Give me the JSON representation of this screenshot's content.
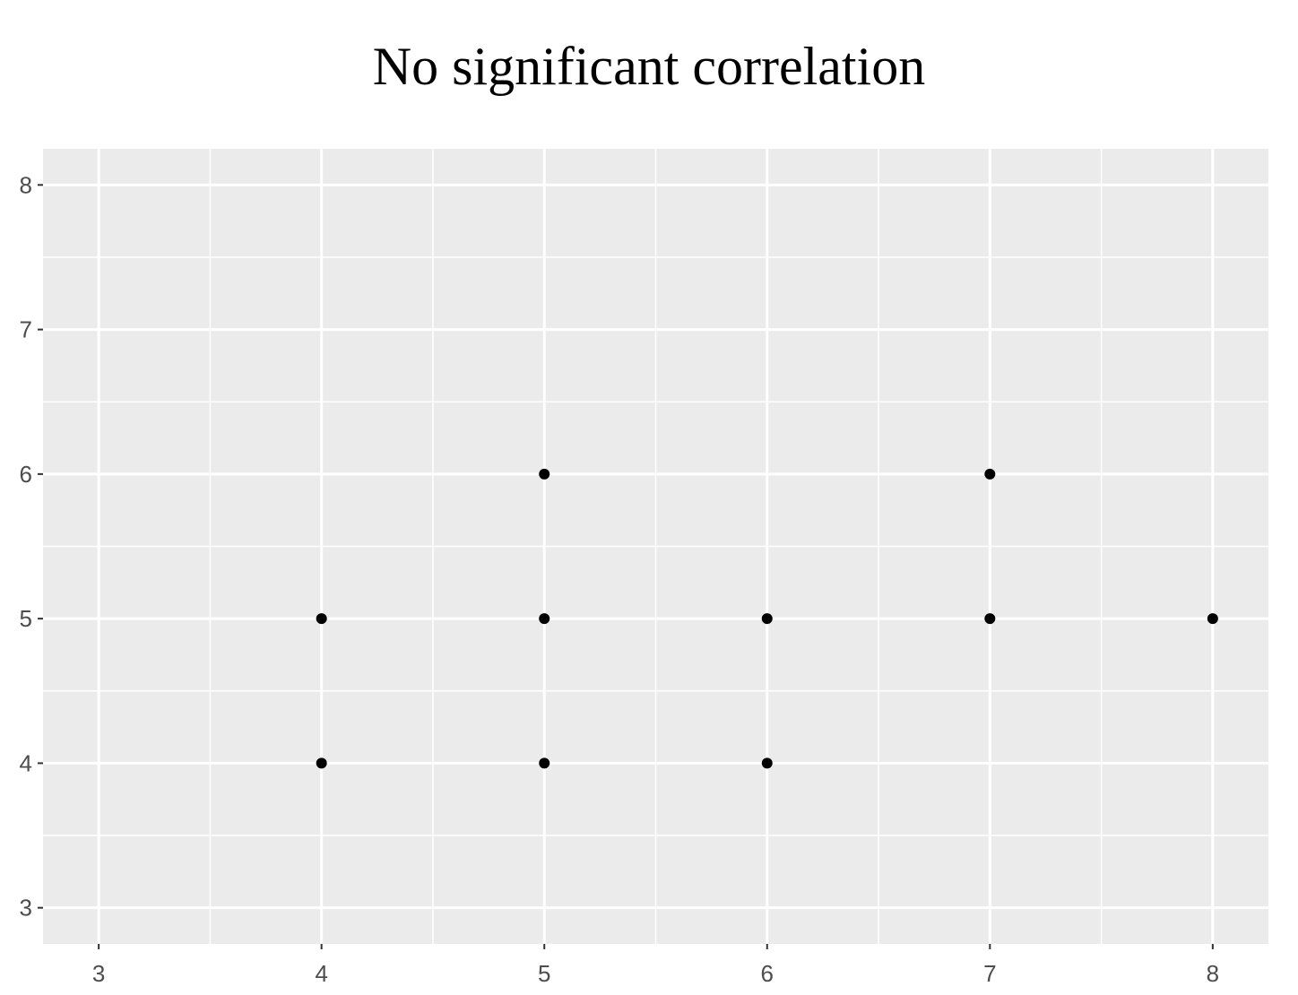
{
  "chart_data": {
    "type": "scatter",
    "title": "No significant correlation",
    "xlabel": "",
    "ylabel": "",
    "xlim": [
      2.75,
      8.25
    ],
    "ylim": [
      2.75,
      8.25
    ],
    "x_ticks": [
      "3",
      "4",
      "5",
      "6",
      "7",
      "8"
    ],
    "y_ticks": [
      "3",
      "4",
      "5",
      "6",
      "7",
      "8"
    ],
    "grid": true,
    "points": [
      {
        "x": 4,
        "y": 5
      },
      {
        "x": 4,
        "y": 4
      },
      {
        "x": 5,
        "y": 6
      },
      {
        "x": 5,
        "y": 5
      },
      {
        "x": 5,
        "y": 4
      },
      {
        "x": 6,
        "y": 5
      },
      {
        "x": 6,
        "y": 4
      },
      {
        "x": 7,
        "y": 6
      },
      {
        "x": 7,
        "y": 5
      },
      {
        "x": 8,
        "y": 5
      }
    ],
    "colors": {
      "panel_background": "#ebebeb",
      "grid": "#ffffff",
      "point": "#000000",
      "tick_text": "#4d4d4d",
      "tick_mark": "#333333"
    }
  }
}
